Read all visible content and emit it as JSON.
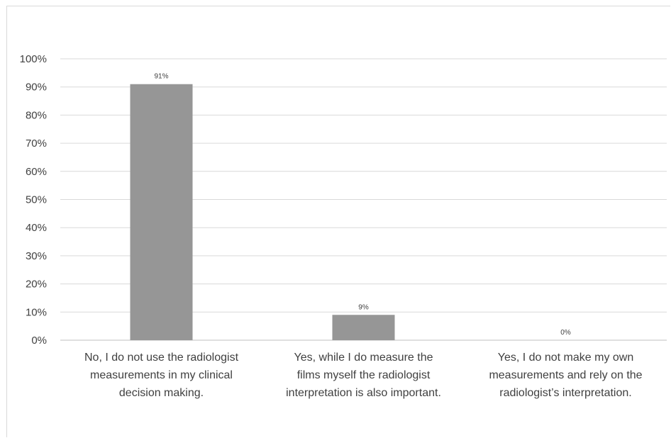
{
  "chart_data": {
    "type": "bar",
    "categories": [
      [
        "No, I do not use the radiologist",
        "measurements in my clinical",
        "decision making."
      ],
      [
        "Yes, while I do measure the",
        "films myself the radiologist",
        "interpretation is also important."
      ],
      [
        "Yes, I do not make my own",
        "measurements and rely on the",
        "radiologist’s interpretation."
      ]
    ],
    "values": [
      91,
      9,
      0
    ],
    "data_labels": [
      "91%",
      "9%",
      "0%"
    ],
    "ylim": [
      0,
      100
    ],
    "yticks": [
      "0%",
      "10%",
      "20%",
      "30%",
      "40%",
      "50%",
      "60%",
      "70%",
      "80%",
      "90%",
      "100%"
    ],
    "title": "",
    "xlabel": "",
    "ylabel": "",
    "grid": true,
    "colors": {
      "bar": "#969696",
      "grid": "#d9d9d9",
      "axis": "#bfbfbf",
      "text": "#404040"
    }
  }
}
